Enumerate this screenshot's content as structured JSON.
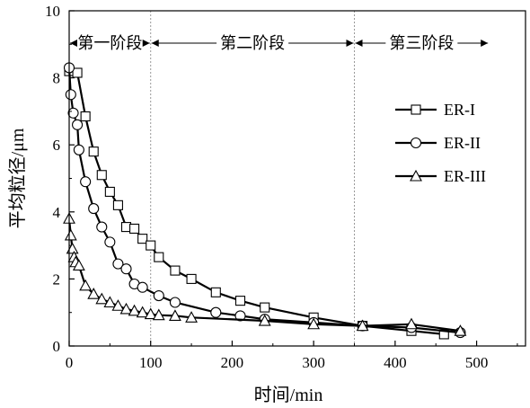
{
  "chart_data": {
    "type": "line",
    "xlabel": "时间/min",
    "ylabel": "平均粒径/μm",
    "xlim": [
      0,
      560
    ],
    "ylim": [
      0,
      10
    ],
    "xticks": [
      0,
      100,
      200,
      300,
      400,
      500
    ],
    "yticks": [
      0,
      2,
      4,
      6,
      8,
      10
    ],
    "legend_position": "right",
    "grid": false,
    "stages": {
      "boundaries": [
        100,
        350
      ],
      "labels": [
        "第一阶段",
        "第二阶段",
        "第三阶段"
      ]
    },
    "series": [
      {
        "name": "ER-I",
        "marker": "square",
        "x": [
          0,
          10,
          20,
          30,
          40,
          50,
          60,
          70,
          80,
          90,
          100,
          110,
          130,
          150,
          180,
          210,
          240,
          300,
          360,
          420,
          460
        ],
        "y": [
          8.2,
          8.15,
          6.85,
          5.8,
          5.1,
          4.6,
          4.2,
          3.55,
          3.5,
          3.2,
          3.0,
          2.65,
          2.25,
          2.0,
          1.6,
          1.35,
          1.15,
          0.85,
          0.6,
          0.45,
          0.35
        ]
      },
      {
        "name": "ER-II",
        "marker": "circle",
        "x": [
          0,
          2,
          5,
          10,
          12,
          20,
          30,
          40,
          50,
          60,
          70,
          80,
          90,
          110,
          130,
          180,
          210,
          240,
          300,
          360,
          420,
          480
        ],
        "y": [
          8.3,
          7.5,
          6.95,
          6.6,
          5.85,
          4.9,
          4.1,
          3.55,
          3.1,
          2.45,
          2.3,
          1.85,
          1.75,
          1.5,
          1.3,
          1.0,
          0.9,
          0.8,
          0.7,
          0.6,
          0.55,
          0.4
        ]
      },
      {
        "name": "ER-III",
        "marker": "triangle",
        "x": [
          0,
          2,
          4,
          6,
          8,
          12,
          20,
          30,
          40,
          50,
          60,
          70,
          80,
          90,
          100,
          110,
          130,
          150,
          240,
          300,
          360,
          420,
          480
        ],
        "y": [
          3.8,
          3.3,
          2.9,
          2.65,
          2.5,
          2.4,
          1.8,
          1.55,
          1.4,
          1.3,
          1.2,
          1.1,
          1.05,
          1.0,
          0.95,
          0.92,
          0.9,
          0.85,
          0.75,
          0.65,
          0.6,
          0.65,
          0.45
        ]
      }
    ]
  }
}
